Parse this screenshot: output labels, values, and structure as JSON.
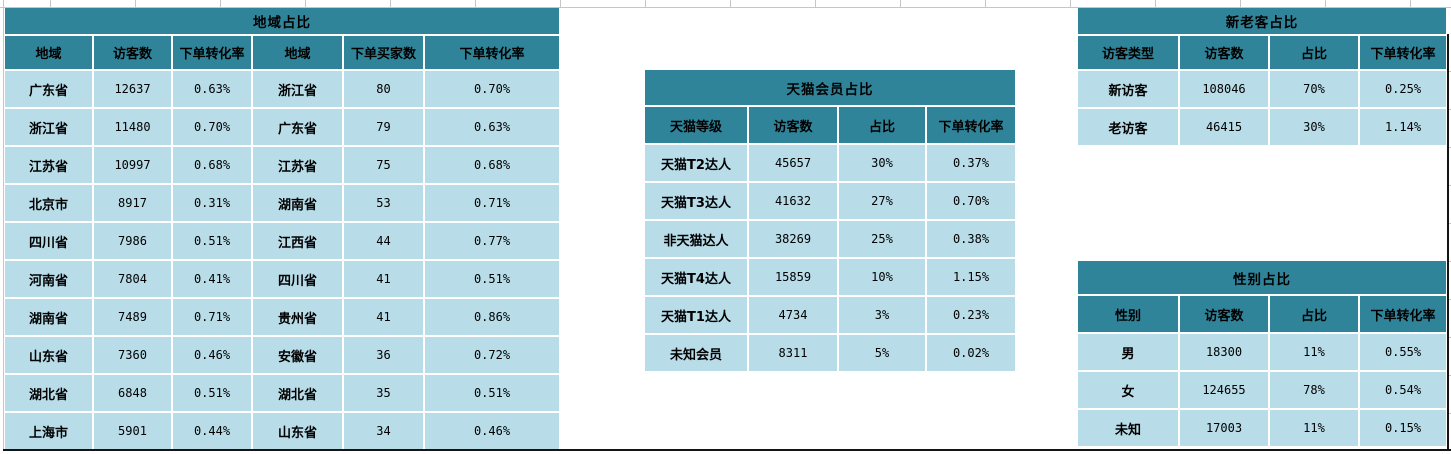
{
  "colors": {
    "header_teal": "#2F8499",
    "cell_light_blue": "#B8DDE9",
    "gridline_gray": "#C6C6C6",
    "page_break_black": "#141414",
    "text_black": "#000000",
    "sheet_background": "#FFFFFF"
  },
  "tables": [
    {
      "id": "region-share",
      "title": "地域占比",
      "headers": [
        "地域",
        "访客数",
        "下单转化率",
        "地域",
        "下单买家数",
        "下单转化率"
      ],
      "rows": [
        [
          "广东省",
          "12637",
          "0.63%",
          "浙江省",
          "80",
          "0.70%"
        ],
        [
          "浙江省",
          "11480",
          "0.70%",
          "广东省",
          "79",
          "0.63%"
        ],
        [
          "江苏省",
          "10997",
          "0.68%",
          "江苏省",
          "75",
          "0.68%"
        ],
        [
          "北京市",
          "8917",
          "0.31%",
          "湖南省",
          "53",
          "0.71%"
        ],
        [
          "四川省",
          "7986",
          "0.51%",
          "江西省",
          "44",
          "0.77%"
        ],
        [
          "河南省",
          "7804",
          "0.41%",
          "四川省",
          "41",
          "0.51%"
        ],
        [
          "湖南省",
          "7489",
          "0.71%",
          "贵州省",
          "41",
          "0.86%"
        ],
        [
          "山东省",
          "7360",
          "0.46%",
          "安徽省",
          "36",
          "0.72%"
        ],
        [
          "湖北省",
          "6848",
          "0.51%",
          "湖北省",
          "35",
          "0.51%"
        ],
        [
          "上海市",
          "5901",
          "0.44%",
          "山东省",
          "34",
          "0.46%"
        ]
      ]
    },
    {
      "id": "tmall-member-share",
      "title": "天猫会员占比",
      "headers": [
        "天猫等级",
        "访客数",
        "占比",
        "下单转化率"
      ],
      "rows": [
        [
          "天猫T2达人",
          "45657",
          "30%",
          "0.37%"
        ],
        [
          "天猫T3达人",
          "41632",
          "27%",
          "0.70%"
        ],
        [
          "非天猫达人",
          "38269",
          "25%",
          "0.38%"
        ],
        [
          "天猫T4达人",
          "15859",
          "10%",
          "1.15%"
        ],
        [
          "天猫T1达人",
          "4734",
          "3%",
          "0.23%"
        ],
        [
          "未知会员",
          "8311",
          "5%",
          "0.02%"
        ]
      ]
    },
    {
      "id": "new-old-visitor-share",
      "title": "新老客占比",
      "headers": [
        "访客类型",
        "访客数",
        "占比",
        "下单转化率"
      ],
      "rows": [
        [
          "新访客",
          "108046",
          "70%",
          "0.25%"
        ],
        [
          "老访客",
          "46415",
          "30%",
          "1.14%"
        ]
      ]
    },
    {
      "id": "gender-share",
      "title": "性别占比",
      "headers": [
        "性别",
        "访客数",
        "占比",
        "下单转化率"
      ],
      "rows": [
        [
          "男",
          "18300",
          "11%",
          "0.55%"
        ],
        [
          "女",
          "124655",
          "78%",
          "0.54%"
        ],
        [
          "未知",
          "17003",
          "11%",
          "0.15%"
        ]
      ]
    }
  ]
}
